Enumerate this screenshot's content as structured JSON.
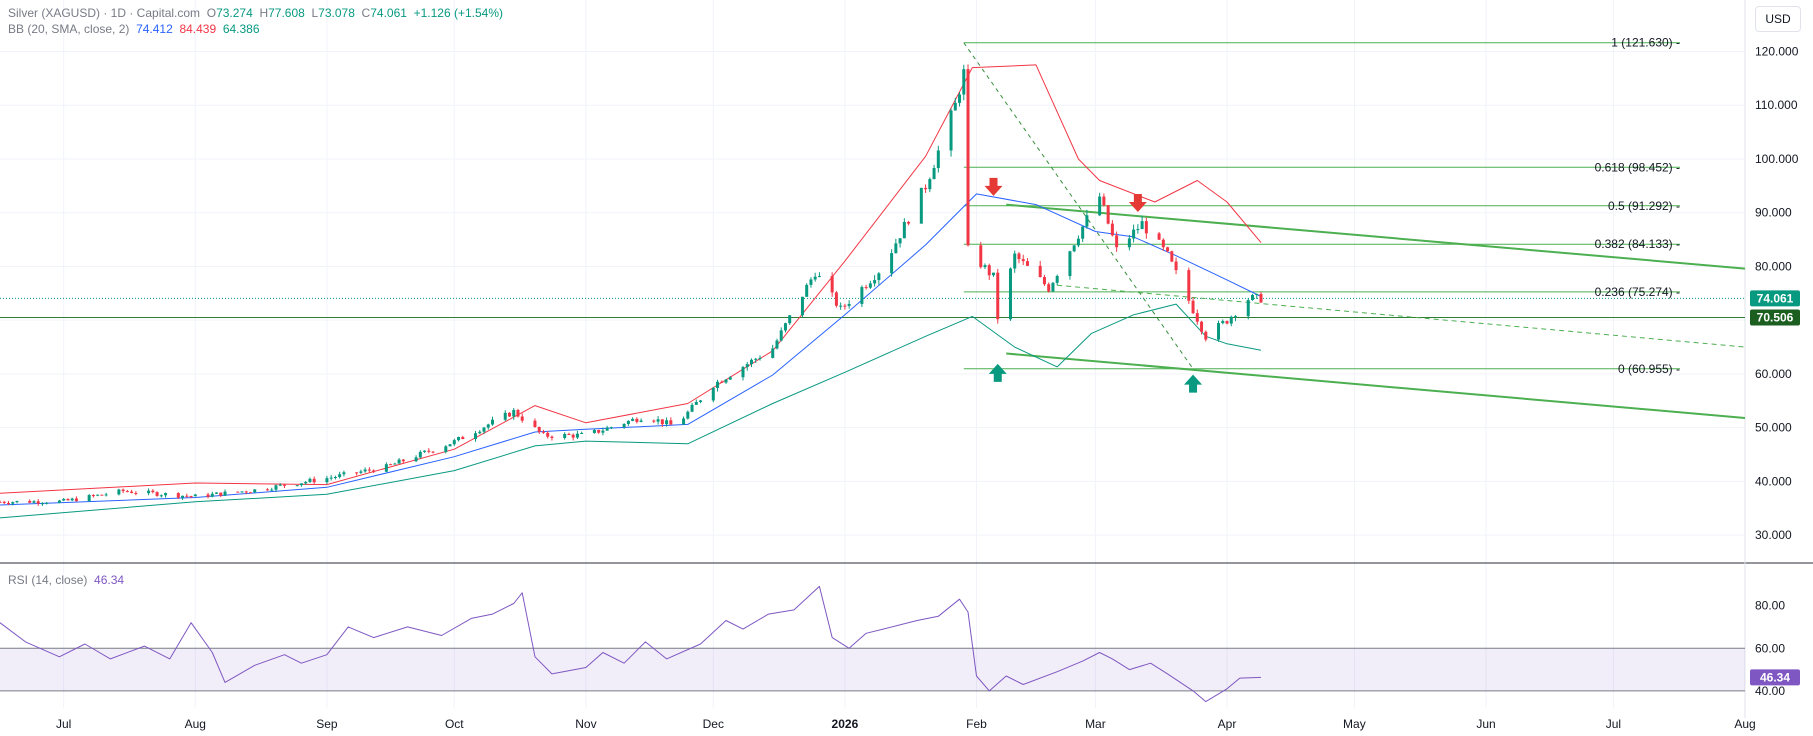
{
  "legend": {
    "symbol": "Silver (XAGUSD) · 1D · Capital.com",
    "o_label": "O",
    "o": "73.274",
    "h_label": "H",
    "h": "77.608",
    "l_label": "L",
    "l": "73.078",
    "c_label": "C",
    "c": "74.061",
    "change": "+1.126 (+1.54%)",
    "bb_label": "BB (20, SMA, close, 2)",
    "bb_basis": "74.412",
    "bb_upper": "84.439",
    "bb_lower": "64.386",
    "rsi_label": "RSI (14, close)",
    "rsi_value": "46.34"
  },
  "currency_button": "USD",
  "colors": {
    "up": "#089981",
    "down": "#f23645",
    "basis": "#2962ff",
    "upper": "#f23645",
    "lower": "#089981",
    "fib": "#4caf50",
    "channel": "#4caf50",
    "rsi": "#7e57c2",
    "grid": "#f0f3fa",
    "axis_text": "#131722"
  },
  "chart_data": [
    {
      "type": "candlestick",
      "title": "Silver (XAGUSD) · 1D · Capital.com",
      "y_axis": {
        "ticks": [
          "30.000",
          "40.000",
          "50.000",
          "60.000",
          "70.000",
          "80.000",
          "90.000",
          "100.000",
          "110.000",
          "120.000"
        ],
        "tick_values": [
          30,
          40,
          50,
          60,
          70,
          80,
          90,
          100,
          110,
          120
        ],
        "range": [
          25,
          124
        ]
      },
      "x_axis": {
        "ticks": [
          "Jul",
          "Aug",
          "Sep",
          "Oct",
          "Nov",
          "Dec",
          "2026",
          "Feb",
          "Mar",
          "Apr",
          "May",
          "Jun",
          "Jul",
          "Aug"
        ],
        "tick_dates": [
          "2025-07-01",
          "2025-08-01",
          "2025-09-01",
          "2025-10-01",
          "2025-11-01",
          "2025-12-01",
          "2026-01-01",
          "2026-02-01",
          "2026-03-01",
          "2026-04-01",
          "2026-05-01",
          "2026-06-01",
          "2026-07-01",
          "2026-08-01"
        ],
        "range": [
          "2025-06-16",
          "2026-08-01"
        ]
      },
      "price_path": [
        [
          "2025-06-16",
          36.2
        ],
        [
          "2025-07-01",
          36.3
        ],
        [
          "2025-07-15",
          38.2
        ],
        [
          "2025-08-01",
          37.2
        ],
        [
          "2025-08-15",
          38.4
        ],
        [
          "2025-09-01",
          40.6
        ],
        [
          "2025-09-15",
          42.7
        ],
        [
          "2025-10-01",
          47.4
        ],
        [
          "2025-10-15",
          53.0
        ],
        [
          "2025-10-22",
          48.5
        ],
        [
          "2025-11-01",
          48.6
        ],
        [
          "2025-11-15",
          52.2
        ],
        [
          "2025-11-22",
          50.2
        ],
        [
          "2025-12-01",
          58.0
        ],
        [
          "2025-12-15",
          64.8
        ],
        [
          "2025-12-25",
          79.0
        ],
        [
          "2025-12-31",
          72.0
        ],
        [
          "2026-01-10",
          80.0
        ],
        [
          "2026-01-20",
          95.0
        ],
        [
          "2026-01-27",
          110.0
        ],
        [
          "2026-01-29",
          116.0
        ],
        [
          "2026-01-30",
          83.0
        ],
        [
          "2026-02-05",
          78.0
        ],
        [
          "2026-02-06",
          70.5
        ],
        [
          "2026-02-10",
          82.0
        ],
        [
          "2026-02-18",
          76.0
        ],
        [
          "2026-02-25",
          86.0
        ],
        [
          "2026-03-02",
          93.0
        ],
        [
          "2026-03-06",
          83.0
        ],
        [
          "2026-03-12",
          88.0
        ],
        [
          "2026-03-18",
          82.0
        ],
        [
          "2026-03-24",
          72.0
        ],
        [
          "2026-03-27",
          67.0
        ],
        [
          "2026-04-01",
          70.0
        ],
        [
          "2026-04-06",
          74.0
        ],
        [
          "2026-04-09",
          74.061
        ]
      ],
      "bollinger": {
        "label": "BB (20, SMA, close, 2)",
        "basis": [
          [
            "2025-06-16",
            35.6
          ],
          [
            "2025-08-01",
            37.0
          ],
          [
            "2025-09-01",
            38.9
          ],
          [
            "2025-10-01",
            44.6
          ],
          [
            "2025-10-20",
            49.2
          ],
          [
            "2025-11-01",
            49.7
          ],
          [
            "2025-11-25",
            50.6
          ],
          [
            "2025-12-15",
            59.8
          ],
          [
            "2026-01-01",
            71.0
          ],
          [
            "2026-01-20",
            84.0
          ],
          [
            "2026-02-01",
            93.5
          ],
          [
            "2026-02-15",
            91.5
          ],
          [
            "2026-03-01",
            86.5
          ],
          [
            "2026-03-10",
            85.5
          ],
          [
            "2026-03-20",
            82.0
          ],
          [
            "2026-04-01",
            77.5
          ],
          [
            "2026-04-09",
            74.412
          ]
        ],
        "upper": [
          [
            "2025-06-16",
            37.8
          ],
          [
            "2025-08-01",
            39.7
          ],
          [
            "2025-09-01",
            39.4
          ],
          [
            "2025-10-01",
            46.0
          ],
          [
            "2025-10-20",
            54.1
          ],
          [
            "2025-11-01",
            50.9
          ],
          [
            "2025-11-25",
            54.5
          ],
          [
            "2025-12-15",
            64.3
          ],
          [
            "2026-01-01",
            81.0
          ],
          [
            "2026-01-20",
            100.5
          ],
          [
            "2026-01-31",
            117.0
          ],
          [
            "2026-02-15",
            117.5
          ],
          [
            "2026-02-25",
            100.0
          ],
          [
            "2026-03-02",
            96.0
          ],
          [
            "2026-03-15",
            92.0
          ],
          [
            "2026-03-25",
            96.0
          ],
          [
            "2026-04-01",
            92.0
          ],
          [
            "2026-04-09",
            84.439
          ]
        ],
        "lower": [
          [
            "2025-06-16",
            33.2
          ],
          [
            "2025-08-01",
            36.2
          ],
          [
            "2025-09-01",
            37.6
          ],
          [
            "2025-10-01",
            42.0
          ],
          [
            "2025-10-20",
            46.6
          ],
          [
            "2025-11-01",
            47.5
          ],
          [
            "2025-11-25",
            47.0
          ],
          [
            "2025-12-15",
            54.5
          ],
          [
            "2026-01-01",
            60.3
          ],
          [
            "2026-01-20",
            67.0
          ],
          [
            "2026-01-31",
            70.7
          ],
          [
            "2026-02-10",
            65.0
          ],
          [
            "2026-02-20",
            61.3
          ],
          [
            "2026-02-28",
            67.5
          ],
          [
            "2026-03-10",
            71.0
          ],
          [
            "2026-03-20",
            73.0
          ],
          [
            "2026-03-27",
            67.0
          ],
          [
            "2026-04-01",
            65.6
          ],
          [
            "2026-04-09",
            64.386
          ]
        ]
      },
      "fibonacci": [
        {
          "ratio": "1",
          "value": 121.63,
          "label": "1 (121.630)"
        },
        {
          "ratio": "0.618",
          "value": 98.452,
          "label": "0.618 (98.452)"
        },
        {
          "ratio": "0.5",
          "value": 91.292,
          "label": "0.5 (91.292)"
        },
        {
          "ratio": "0.382",
          "value": 84.133,
          "label": "0.382 (84.133)"
        },
        {
          "ratio": "0.236",
          "value": 75.274,
          "label": "0.236 (75.274)"
        },
        {
          "ratio": "0",
          "value": 60.955,
          "label": "0 (60.955)"
        }
      ],
      "fib_start_date": "2026-01-29",
      "fib_diagonal": [
        [
          "2026-01-29",
          121.63
        ],
        [
          "2026-03-24",
          60.955
        ]
      ],
      "channel_lines": [
        [
          [
            "2026-02-08",
            91.5
          ],
          [
            "2026-08-01",
            79.6
          ]
        ],
        [
          [
            "2026-02-08",
            63.8
          ],
          [
            "2026-08-01",
            51.8
          ]
        ]
      ],
      "trend_dashed": [
        [
          "2026-02-20",
          76.5
        ],
        [
          "2026-08-01",
          65.0
        ]
      ],
      "horizontal_support": 70.506,
      "current_price": 74.061,
      "price_tags": [
        "74.061",
        "70.506"
      ],
      "markers": [
        {
          "type": "down",
          "date": "2026-02-05",
          "value": 93.5
        },
        {
          "type": "down",
          "date": "2026-03-11",
          "value": 90.5
        },
        {
          "type": "up",
          "date": "2026-02-06",
          "value": 61.5
        },
        {
          "type": "up",
          "date": "2026-03-24",
          "value": 59.5
        }
      ]
    },
    {
      "type": "line",
      "title": "RSI (14, close)",
      "y_axis": {
        "ticks": [
          "40.00",
          "60.00",
          "80.00"
        ],
        "tick_values": [
          40,
          60,
          80
        ],
        "range": [
          32,
          92
        ]
      },
      "band": [
        40,
        60
      ],
      "current": "46.34",
      "series": [
        {
          "values": [
            [
              "2025-06-16",
              72
            ],
            [
              "2025-06-22",
              63
            ],
            [
              "2025-06-30",
              56
            ],
            [
              "2025-07-06",
              62
            ],
            [
              "2025-07-12",
              55
            ],
            [
              "2025-07-20",
              61
            ],
            [
              "2025-07-26",
              55
            ],
            [
              "2025-07-31",
              72
            ],
            [
              "2025-08-05",
              58
            ],
            [
              "2025-08-08",
              44
            ],
            [
              "2025-08-15",
              52
            ],
            [
              "2025-08-22",
              57
            ],
            [
              "2025-08-26",
              53
            ],
            [
              "2025-09-01",
              57
            ],
            [
              "2025-09-06",
              70
            ],
            [
              "2025-09-12",
              65
            ],
            [
              "2025-09-20",
              70
            ],
            [
              "2025-09-28",
              66
            ],
            [
              "2025-10-05",
              74
            ],
            [
              "2025-10-10",
              76
            ],
            [
              "2025-10-15",
              81
            ],
            [
              "2025-10-17",
              86
            ],
            [
              "2025-10-20",
              56
            ],
            [
              "2025-10-24",
              48
            ],
            [
              "2025-11-01",
              51
            ],
            [
              "2025-11-05",
              58
            ],
            [
              "2025-11-10",
              53
            ],
            [
              "2025-11-15",
              63
            ],
            [
              "2025-11-20",
              55
            ],
            [
              "2025-11-28",
              62
            ],
            [
              "2025-12-04",
              73
            ],
            [
              "2025-12-08",
              69
            ],
            [
              "2025-12-14",
              76
            ],
            [
              "2025-12-20",
              78
            ],
            [
              "2025-12-26",
              89
            ],
            [
              "2025-12-29",
              65
            ],
            [
              "2026-01-02",
              60
            ],
            [
              "2026-01-06",
              67
            ],
            [
              "2026-01-10",
              69
            ],
            [
              "2026-01-18",
              73
            ],
            [
              "2026-01-23",
              75
            ],
            [
              "2026-01-28",
              83
            ],
            [
              "2026-01-30",
              77
            ],
            [
              "2026-02-01",
              47
            ],
            [
              "2026-02-04",
              40
            ],
            [
              "2026-02-08",
              47
            ],
            [
              "2026-02-12",
              43
            ],
            [
              "2026-02-20",
              49
            ],
            [
              "2026-02-26",
              54
            ],
            [
              "2026-03-02",
              58
            ],
            [
              "2026-03-05",
              55
            ],
            [
              "2026-03-09",
              50
            ],
            [
              "2026-03-14",
              53
            ],
            [
              "2026-03-18",
              48
            ],
            [
              "2026-03-24",
              40
            ],
            [
              "2026-03-27",
              35
            ],
            [
              "2026-04-01",
              41
            ],
            [
              "2026-04-04",
              46
            ],
            [
              "2026-04-09",
              46.34
            ]
          ]
        }
      ]
    }
  ]
}
